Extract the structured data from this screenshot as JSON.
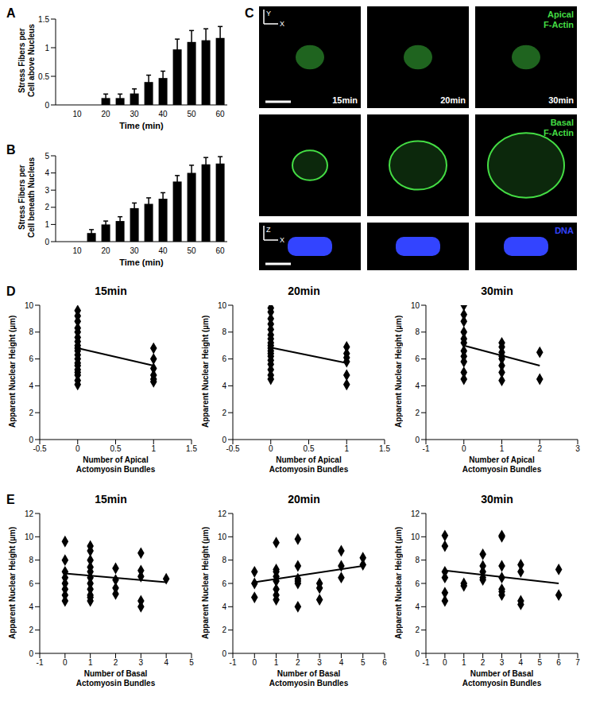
{
  "chart_data": [
    {
      "type": "bar",
      "panel_label": "A",
      "x_label": "Time (min)",
      "y_label": [
        "Stress Fibers per",
        "Cell above Nucleus"
      ],
      "categories": [
        null,
        "10",
        null,
        "20",
        null,
        "30",
        null,
        "40",
        null,
        "50",
        null,
        "60"
      ],
      "values": [
        null,
        null,
        null,
        0.12,
        0.12,
        0.2,
        0.4,
        0.47,
        0.97,
        1.1,
        1.13,
        1.17
      ],
      "errors": [
        null,
        null,
        null,
        0.07,
        0.07,
        0.08,
        0.12,
        0.12,
        0.18,
        0.2,
        0.2,
        0.2
      ],
      "color": "#000000",
      "ylim": [
        0,
        1.5
      ],
      "yticks": [
        0,
        0.5,
        1,
        1.5
      ]
    },
    {
      "type": "bar",
      "panel_label": "B",
      "x_label": "Time (min)",
      "y_label": [
        "Stress Fibers per",
        "Cell beneath Nucleus"
      ],
      "categories": [
        null,
        "10",
        null,
        "20",
        null,
        "30",
        null,
        "40",
        null,
        "50",
        null,
        "60"
      ],
      "values": [
        null,
        null,
        0.5,
        1.0,
        1.2,
        1.95,
        2.2,
        2.5,
        3.5,
        4.0,
        4.5,
        4.55
      ],
      "errors": [
        null,
        null,
        0.2,
        0.2,
        0.25,
        0.3,
        0.35,
        0.35,
        0.35,
        0.45,
        0.4,
        0.4
      ],
      "color": "#000000",
      "ylim": [
        0,
        5
      ],
      "yticks": [
        0,
        1,
        2,
        3,
        4,
        5
      ]
    },
    {
      "type": "scatter",
      "panel_label": "D",
      "title": "15min",
      "x_label": [
        "Number of Apical",
        "Actomyosin Bundles"
      ],
      "y_label": "Apparent Nuclear Height (µm)",
      "marker": "diamond",
      "color": "#000000",
      "x": [
        0,
        0,
        0,
        0,
        0,
        0,
        0,
        0,
        0,
        0,
        0,
        0,
        0,
        0,
        0,
        0,
        0,
        0,
        0,
        1,
        1,
        1,
        1,
        1,
        1
      ],
      "values": [
        9.6,
        9.2,
        8.8,
        8.3,
        8.0,
        7.6,
        7.3,
        7.0,
        6.8,
        6.6,
        6.3,
        6.0,
        5.7,
        5.5,
        5.2,
        5.0,
        4.8,
        4.4,
        4.1,
        6.8,
        6.0,
        5.3,
        4.8,
        4.5,
        4.3
      ],
      "trend_line": {
        "x": [
          0,
          1
        ],
        "values": [
          6.8,
          5.5
        ]
      },
      "xlim": [
        -0.5,
        1.5
      ],
      "xticks": [
        -0.5,
        0,
        0.5,
        1,
        1.5
      ],
      "ylim": [
        0,
        10
      ],
      "yticks": [
        0,
        2,
        4,
        6,
        8,
        10
      ]
    },
    {
      "type": "scatter",
      "title": "20min",
      "x_label": [
        "Number of Apical",
        "Actomyosin Bundles"
      ],
      "y_label": "Apparent Nuclear Height (µm)",
      "marker": "diamond",
      "color": "#000000",
      "x": [
        0,
        0,
        0,
        0,
        0,
        0,
        0,
        0,
        0,
        0,
        0,
        0,
        0,
        0,
        0,
        0,
        0,
        0,
        1,
        1,
        1,
        1,
        1,
        1
      ],
      "values": [
        9.8,
        9.5,
        9.0,
        8.6,
        8.2,
        7.8,
        7.5,
        7.2,
        7.0,
        6.8,
        6.6,
        6.4,
        6.2,
        5.9,
        5.6,
        5.2,
        4.8,
        4.5,
        6.9,
        6.4,
        6.1,
        5.8,
        4.8,
        4.1
      ],
      "trend_line": {
        "x": [
          0,
          1
        ],
        "values": [
          6.85,
          5.7
        ]
      },
      "xlim": [
        -0.5,
        1.5
      ],
      "xticks": [
        -0.5,
        0,
        0.5,
        1,
        1.5
      ],
      "ylim": [
        0,
        10
      ],
      "yticks": [
        0,
        2,
        4,
        6,
        8,
        10
      ]
    },
    {
      "type": "scatter",
      "title": "30min",
      "x_label": [
        "Number of Apical",
        "Actomyosin Bundles"
      ],
      "y_label": "Apparent Nuclear Height (µm)",
      "marker": "diamond",
      "color": "#000000",
      "x": [
        0,
        0,
        0,
        0,
        0,
        0,
        0,
        0,
        0,
        0,
        0,
        1,
        1,
        1,
        1,
        1,
        1,
        1,
        1,
        2,
        2
      ],
      "values": [
        10.0,
        9.3,
        8.8,
        8.0,
        7.5,
        7.2,
        6.6,
        6.2,
        5.8,
        5.0,
        4.5,
        7.2,
        6.9,
        6.5,
        6.2,
        6.0,
        5.5,
        5.0,
        4.4,
        6.5,
        4.5
      ],
      "trend_line": {
        "x": [
          0,
          2
        ],
        "values": [
          7.0,
          5.5
        ]
      },
      "xlim": [
        -1,
        3
      ],
      "xticks": [
        -1,
        0,
        1,
        2,
        3
      ],
      "ylim": [
        0,
        10
      ],
      "yticks": [
        0,
        2,
        4,
        6,
        8,
        10
      ]
    },
    {
      "type": "scatter",
      "panel_label": "E",
      "title": "15min",
      "x_label": [
        "Number of Basal",
        "Actomyosin Bundles"
      ],
      "y_label": "Apparent Nuclear Height (µm)",
      "marker": "diamond",
      "color": "#000000",
      "x": [
        0,
        0,
        0,
        0,
        0,
        0,
        0,
        0,
        1,
        1,
        1,
        1,
        1,
        1,
        1,
        1,
        1,
        1,
        1,
        2,
        2,
        2,
        2,
        3,
        3,
        3,
        3,
        3,
        4
      ],
      "values": [
        9.6,
        8.0,
        7.0,
        6.5,
        6.0,
        5.5,
        5.0,
        4.5,
        9.2,
        8.8,
        8.0,
        7.4,
        7.0,
        6.5,
        6.0,
        5.5,
        5.0,
        4.8,
        4.5,
        7.3,
        6.3,
        5.6,
        5.1,
        8.6,
        7.1,
        6.6,
        4.5,
        4.0,
        6.4
      ],
      "trend_line": {
        "x": [
          0,
          4
        ],
        "values": [
          6.85,
          6.1
        ]
      },
      "xlim": [
        -1,
        5
      ],
      "xticks": [
        -1,
        0,
        1,
        2,
        3,
        4,
        5
      ],
      "ylim": [
        0,
        12
      ],
      "yticks": [
        0,
        2,
        4,
        6,
        8,
        10,
        12
      ]
    },
    {
      "type": "scatter",
      "title": "20min",
      "x_label": [
        "Number of Basal",
        "Actomyosin Bundles"
      ],
      "y_label": "Apparent Nuclear Height (µm)",
      "marker": "diamond",
      "color": "#000000",
      "x": [
        0,
        0,
        0,
        1,
        1,
        1,
        1,
        1,
        1,
        1,
        1,
        2,
        2,
        2,
        2,
        2,
        2,
        3,
        3,
        3,
        4,
        4,
        4,
        5,
        5
      ],
      "values": [
        7.0,
        6.0,
        4.8,
        9.5,
        7.2,
        7.0,
        6.6,
        6.2,
        5.5,
        5.0,
        4.6,
        9.8,
        7.5,
        6.4,
        6.2,
        6.0,
        4.0,
        6.0,
        5.6,
        4.6,
        8.8,
        7.5,
        6.5,
        8.2,
        7.6
      ],
      "trend_line": {
        "x": [
          0,
          5
        ],
        "values": [
          6.1,
          7.5
        ]
      },
      "xlim": [
        -1,
        6
      ],
      "xticks": [
        -1,
        0,
        1,
        2,
        3,
        4,
        5,
        6
      ],
      "ylim": [
        0,
        12
      ],
      "yticks": [
        0,
        2,
        4,
        6,
        8,
        10,
        12
      ]
    },
    {
      "type": "scatter",
      "title": "30min",
      "x_label": [
        "Number of Basal",
        "Actomyosin Bundles"
      ],
      "y_label": "Apparent Nuclear Height (µm)",
      "marker": "diamond",
      "color": "#000000",
      "x": [
        0,
        0,
        0,
        0,
        0,
        0,
        1,
        1,
        2,
        2,
        2,
        2,
        2,
        3,
        3,
        3,
        3,
        3,
        3,
        3,
        4,
        4,
        4,
        4,
        6,
        6
      ],
      "values": [
        10.1,
        9.2,
        7.0,
        6.5,
        5.2,
        4.5,
        6.0,
        5.8,
        8.5,
        7.5,
        7.0,
        6.5,
        6.3,
        10.1,
        10.0,
        7.5,
        6.5,
        5.5,
        5.3,
        5.0,
        7.6,
        7.0,
        4.5,
        4.2,
        7.2,
        5.0
      ],
      "trend_line": {
        "x": [
          0,
          6
        ],
        "values": [
          7.1,
          6.0
        ]
      },
      "xlim": [
        -1,
        7
      ],
      "xticks": [
        -1,
        0,
        1,
        2,
        3,
        4,
        5,
        6,
        7
      ],
      "ylim": [
        0,
        12
      ],
      "yticks": [
        0,
        2,
        4,
        6,
        8,
        10,
        12
      ]
    }
  ],
  "image_panel": {
    "panel_label": "C",
    "times": [
      "15min",
      "20min",
      "30min"
    ],
    "rows": [
      {
        "label": [
          "Apical",
          "F-Actin"
        ],
        "color": "#44dd44"
      },
      {
        "label": [
          "Basal",
          "F-Actin"
        ],
        "color": "#44dd44"
      },
      {
        "label": [
          "DNA"
        ],
        "color": "#3344ff"
      }
    ],
    "axis_labels": [
      [
        "Y",
        "X"
      ],
      [
        "Z",
        "X"
      ]
    ]
  }
}
